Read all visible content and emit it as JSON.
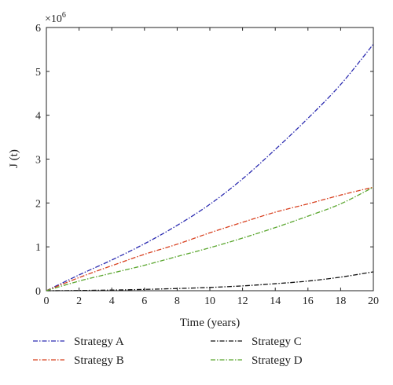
{
  "chart_data": {
    "type": "line",
    "xlabel": "Time (years)",
    "ylabel": "J (t)",
    "multiplier_base": "×10",
    "multiplier_exp": "6",
    "xlim": [
      0,
      20
    ],
    "ylim": [
      0,
      6
    ],
    "xticks": [
      "0",
      "2",
      "4",
      "6",
      "8",
      "10",
      "12",
      "14",
      "16",
      "18",
      "20"
    ],
    "yticks": [
      "0",
      "1",
      "2",
      "3",
      "4",
      "5",
      "6"
    ],
    "x": [
      0,
      2,
      4,
      6,
      8,
      10,
      12,
      14,
      16,
      18,
      20
    ],
    "series": [
      {
        "name": "Strategy A",
        "color": "#2b2bb0",
        "values": [
          0,
          0.36,
          0.7,
          1.07,
          1.49,
          1.97,
          2.55,
          3.22,
          3.93,
          4.7,
          5.62
        ]
      },
      {
        "name": "Strategy B",
        "color": "#d8401f",
        "values": [
          0,
          0.3,
          0.57,
          0.83,
          1.06,
          1.32,
          1.56,
          1.79,
          1.98,
          2.18,
          2.36
        ]
      },
      {
        "name": "Strategy C",
        "color": "#111111",
        "values": [
          0,
          0.005,
          0.015,
          0.03,
          0.05,
          0.075,
          0.11,
          0.16,
          0.22,
          0.31,
          0.43
        ]
      },
      {
        "name": "Strategy D",
        "color": "#5aa62e",
        "values": [
          0,
          0.22,
          0.4,
          0.58,
          0.78,
          0.98,
          1.2,
          1.44,
          1.7,
          1.98,
          2.36
        ]
      }
    ],
    "legend": {
      "placement": "bottom",
      "columns": 2
    },
    "grid": false
  }
}
